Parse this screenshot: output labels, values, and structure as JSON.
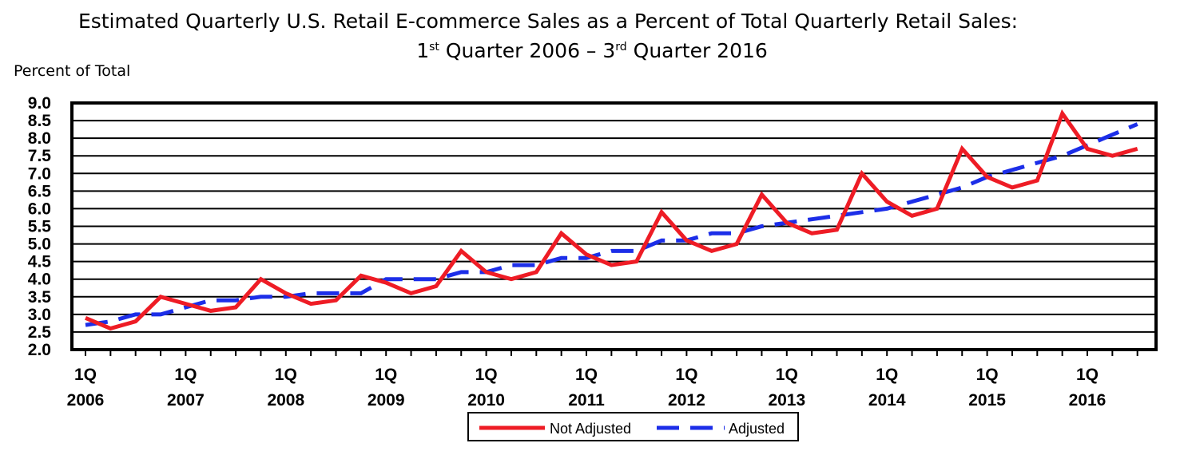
{
  "title_line1": "Estimated Quarterly U.S. Retail E-commerce Sales as a Percent of Total Quarterly Retail Sales:",
  "title_line2": {
    "start_num": "1",
    "start_sup": "st",
    "middle": " Quarter 2006 – ",
    "end_num": "3",
    "end_sup": "rd",
    "end": " Quarter 2016"
  },
  "chart_data": {
    "type": "line",
    "ylabel": "Percent of Total",
    "ylim": [
      2.0,
      9.0
    ],
    "y_ticks": [
      "9.0",
      "8.5",
      "8.0",
      "7.5",
      "7.0",
      "6.5",
      "6.0",
      "5.5",
      "5.0",
      "4.5",
      "4.0",
      "3.5",
      "3.0",
      "2.5",
      "2.0"
    ],
    "grid": true,
    "x_tick_labels": [
      {
        "quarter": "1Q",
        "year": "2006"
      },
      {
        "quarter": "1Q",
        "year": "2007"
      },
      {
        "quarter": "1Q",
        "year": "2008"
      },
      {
        "quarter": "1Q",
        "year": "2009"
      },
      {
        "quarter": "1Q",
        "year": "2010"
      },
      {
        "quarter": "1Q",
        "year": "2011"
      },
      {
        "quarter": "1Q",
        "year": "2012"
      },
      {
        "quarter": "1Q",
        "year": "2013"
      },
      {
        "quarter": "1Q",
        "year": "2014"
      },
      {
        "quarter": "1Q",
        "year": "2015"
      },
      {
        "quarter": "1Q",
        "year": "2016"
      }
    ],
    "x": [
      "2006Q1",
      "2006Q2",
      "2006Q3",
      "2006Q4",
      "2007Q1",
      "2007Q2",
      "2007Q3",
      "2007Q4",
      "2008Q1",
      "2008Q2",
      "2008Q3",
      "2008Q4",
      "2009Q1",
      "2009Q2",
      "2009Q3",
      "2009Q4",
      "2010Q1",
      "2010Q2",
      "2010Q3",
      "2010Q4",
      "2011Q1",
      "2011Q2",
      "2011Q3",
      "2011Q4",
      "2012Q1",
      "2012Q2",
      "2012Q3",
      "2012Q4",
      "2013Q1",
      "2013Q2",
      "2013Q3",
      "2013Q4",
      "2014Q1",
      "2014Q2",
      "2014Q3",
      "2014Q4",
      "2015Q1",
      "2015Q2",
      "2015Q3",
      "2015Q4",
      "2016Q1",
      "2016Q2",
      "2016Q3"
    ],
    "series": [
      {
        "name": "Not Adjusted",
        "color": "#ee1c25",
        "style": "solid",
        "values": [
          2.9,
          2.6,
          2.8,
          3.5,
          3.3,
          3.1,
          3.2,
          4.0,
          3.6,
          3.3,
          3.4,
          4.1,
          3.9,
          3.6,
          3.8,
          4.8,
          4.2,
          4.0,
          4.2,
          5.3,
          4.7,
          4.4,
          4.5,
          5.9,
          5.1,
          4.8,
          5.0,
          6.4,
          5.6,
          5.3,
          5.4,
          7.0,
          6.2,
          5.8,
          6.0,
          7.7,
          6.9,
          6.6,
          6.8,
          8.7,
          7.7,
          7.5,
          7.7
        ]
      },
      {
        "name": "Adjusted",
        "color": "#1c2ee8",
        "style": "dashed",
        "values": [
          2.7,
          2.8,
          3.0,
          3.0,
          3.2,
          3.4,
          3.4,
          3.5,
          3.5,
          3.6,
          3.6,
          3.6,
          4.0,
          4.0,
          4.0,
          4.2,
          4.2,
          4.4,
          4.4,
          4.6,
          4.6,
          4.8,
          4.8,
          5.1,
          5.1,
          5.3,
          5.3,
          5.5,
          5.6,
          5.7,
          5.8,
          5.9,
          6.0,
          6.2,
          6.4,
          6.6,
          6.9,
          7.1,
          7.3,
          7.5,
          7.8,
          8.1,
          8.4
        ]
      }
    ],
    "legend_placement": "bottom-center"
  }
}
